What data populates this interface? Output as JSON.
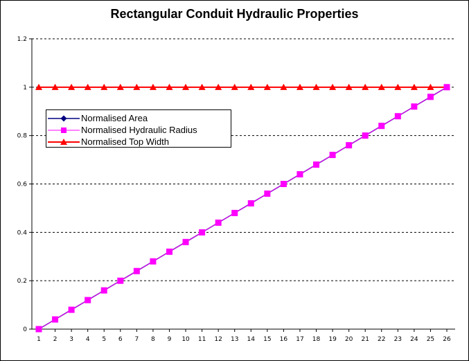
{
  "chart_data": {
    "type": "line",
    "title": "Rectangular Conduit Hydraulic Properties",
    "x": [
      "1",
      "2",
      "3",
      "4",
      "5",
      "6",
      "7",
      "8",
      "9",
      "10",
      "11",
      "12",
      "13",
      "14",
      "15",
      "16",
      "17",
      "18",
      "19",
      "20",
      "21",
      "22",
      "23",
      "24",
      "25",
      "26"
    ],
    "ylim": [
      0,
      1.2
    ],
    "yticks": [
      "0",
      "0.2",
      "0.4",
      "0.6",
      "0.8",
      "1",
      "1.2"
    ],
    "grid": "horizontal dashed",
    "legend_position": "upper-left",
    "series": [
      {
        "name": "Normalised Area",
        "color": "#000080",
        "marker": "diamond",
        "values": [
          0,
          0.04,
          0.08,
          0.12,
          0.16,
          0.2,
          0.24,
          0.28,
          0.32,
          0.36,
          0.4,
          0.44,
          0.48,
          0.52,
          0.56,
          0.6,
          0.64,
          0.68,
          0.72,
          0.76,
          0.8,
          0.84,
          0.88,
          0.92,
          0.96,
          1.0
        ]
      },
      {
        "name": "Normalised Hydraulic Radius",
        "color": "#ff00ff",
        "marker": "square",
        "values": [
          0,
          0.04,
          0.08,
          0.12,
          0.16,
          0.2,
          0.24,
          0.28,
          0.32,
          0.36,
          0.4,
          0.44,
          0.48,
          0.52,
          0.56,
          0.6,
          0.64,
          0.68,
          0.72,
          0.76,
          0.8,
          0.84,
          0.88,
          0.92,
          0.96,
          1.0
        ]
      },
      {
        "name": "Normalised Top Width",
        "color": "#ff0000",
        "marker": "triangle",
        "values": [
          1,
          1,
          1,
          1,
          1,
          1,
          1,
          1,
          1,
          1,
          1,
          1,
          1,
          1,
          1,
          1,
          1,
          1,
          1,
          1,
          1,
          1,
          1,
          1,
          1,
          1
        ]
      }
    ]
  }
}
